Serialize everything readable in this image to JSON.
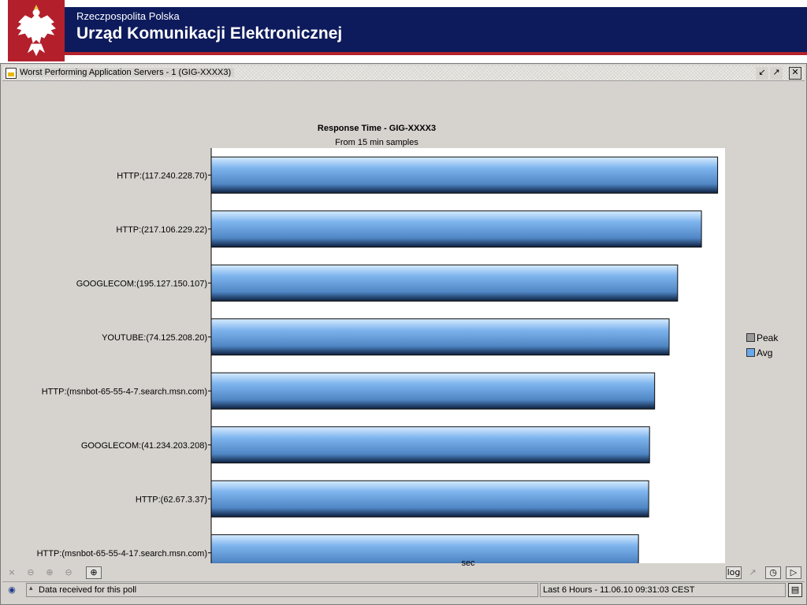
{
  "header": {
    "subtitle": "Rzeczpospolita Polska",
    "title": "Urząd Komunikacji Elektronicznej",
    "band_color": "#0d1a5c",
    "accent_color": "#b3202c"
  },
  "window": {
    "title": "Worst Performing Application Servers - 1 (GIG-XXXX3)",
    "icons": [
      "report-icon",
      "restore-icon",
      "maximize-icon",
      "close-icon"
    ]
  },
  "chart_data": {
    "type": "bar",
    "orientation": "horizontal",
    "title": "Response Time - GIG-XXXX3",
    "subtitle": "From 15 min samples",
    "xlabel": "sec",
    "ylabel": "",
    "xlim": [
      0,
      6
    ],
    "xticks": [
      "0",
      "1",
      "2",
      "3",
      "4",
      "5",
      "6"
    ],
    "categories": [
      "HTTP:(117.240.228.70)",
      "HTTP:(217.106.229.22)",
      "GOOGLECOM:(195.127.150.107)",
      "YOUTUBE:(74.125.208.20)",
      "HTTP:(msnbot-65-55-4-7.search.msn.com)",
      "GOOGLECOM:(41.234.203.208)",
      "HTTP:(62.67.3.37)",
      "HTTP:(msnbot-65-55-4-17.search.msn.com)"
    ],
    "series": [
      {
        "name": "Avg",
        "color": "#7fb5ee",
        "values": [
          5.95,
          5.76,
          5.48,
          5.38,
          5.21,
          5.15,
          5.14,
          5.02
        ]
      }
    ],
    "legend": [
      {
        "name": "Peak",
        "color": "#9a9a9a"
      },
      {
        "name": "Avg",
        "color": "#6aa8ec"
      }
    ],
    "legend_position": "right",
    "grid": false
  },
  "toolbar": {
    "zoom_icons": [
      "zoom-reset-icon",
      "zoom-out-icon",
      "zoom-in-icon",
      "zoom-fit-icon",
      "zoom-select-icon"
    ],
    "log_label": "log",
    "right_icons": [
      "trend-icon",
      "clock-icon",
      "export-icon"
    ]
  },
  "status": {
    "message": "Data received for this poll",
    "timestamp": "Last 6 Hours - 11.06.10 09:31:03 CEST",
    "icons": [
      "network-icon",
      "info-icon",
      "window-icon"
    ]
  }
}
